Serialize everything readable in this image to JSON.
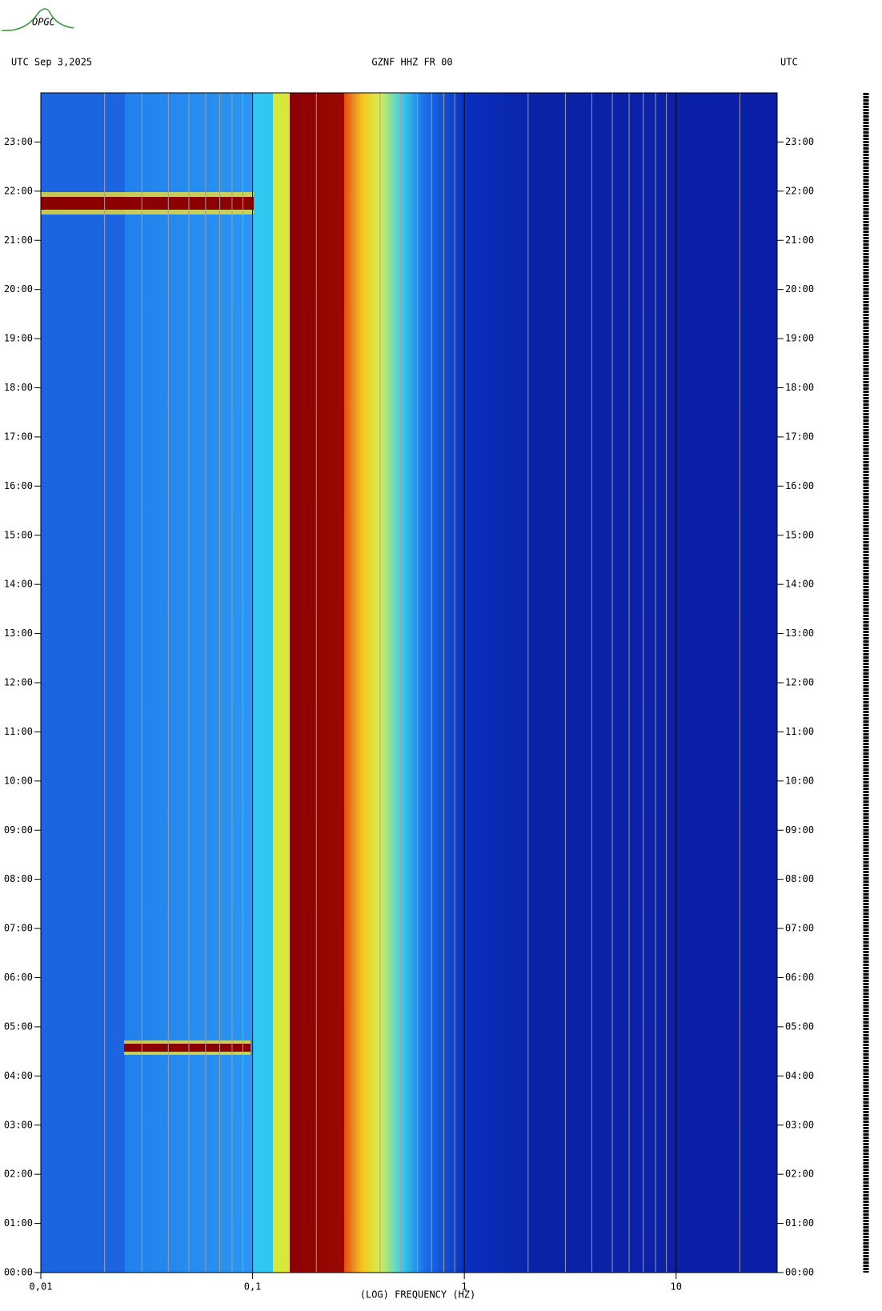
{
  "chart_data": {
    "type": "spectrogram",
    "logo": "OPGC",
    "header_left": "UTC  Sep 3,2025",
    "title": "GZNF HHZ FR 00",
    "header_right": "UTC",
    "xlabel": "(LOG) FREQUENCY (HZ)",
    "xscale": "log",
    "xlim": [
      0.01,
      30
    ],
    "xticks": [
      {
        "value": 0.01,
        "label": "0,01"
      },
      {
        "value": 0.1,
        "label": "0,1"
      },
      1,
      10
    ],
    "xticks_minor": [
      0.02,
      0.03,
      0.04,
      0.05,
      0.06,
      0.07,
      0.08,
      0.09,
      0.2,
      0.3,
      0.4,
      0.5,
      0.6,
      0.7,
      0.8,
      0.9,
      2,
      3,
      4,
      5,
      6,
      7,
      8,
      9,
      20
    ],
    "ylim": [
      0,
      24
    ],
    "yticks": [
      {
        "value": 0,
        "label": "00:00"
      },
      {
        "value": 1,
        "label": "01:00"
      },
      {
        "value": 2,
        "label": "02:00"
      },
      {
        "value": 3,
        "label": "03:00"
      },
      {
        "value": 4,
        "label": "04:00"
      },
      {
        "value": 5,
        "label": "05:00"
      },
      {
        "value": 6,
        "label": "06:00"
      },
      {
        "value": 7,
        "label": "07:00"
      },
      {
        "value": 8,
        "label": "08:00"
      },
      {
        "value": 9,
        "label": "09:00"
      },
      {
        "value": 10,
        "label": "10:00"
      },
      {
        "value": 11,
        "label": "11:00"
      },
      {
        "value": 12,
        "label": "12:00"
      },
      {
        "value": 13,
        "label": "13:00"
      },
      {
        "value": 14,
        "label": "14:00"
      },
      {
        "value": 15,
        "label": "15:00"
      },
      {
        "value": 16,
        "label": "16:00"
      },
      {
        "value": 17,
        "label": "17:00"
      },
      {
        "value": 18,
        "label": "18:00"
      },
      {
        "value": 19,
        "label": "19:00"
      },
      {
        "value": 20,
        "label": "20:00"
      },
      {
        "value": 21,
        "label": "21:00"
      },
      {
        "value": 22,
        "label": "22:00"
      },
      {
        "value": 23,
        "label": "23:00"
      }
    ],
    "grid": true
  }
}
